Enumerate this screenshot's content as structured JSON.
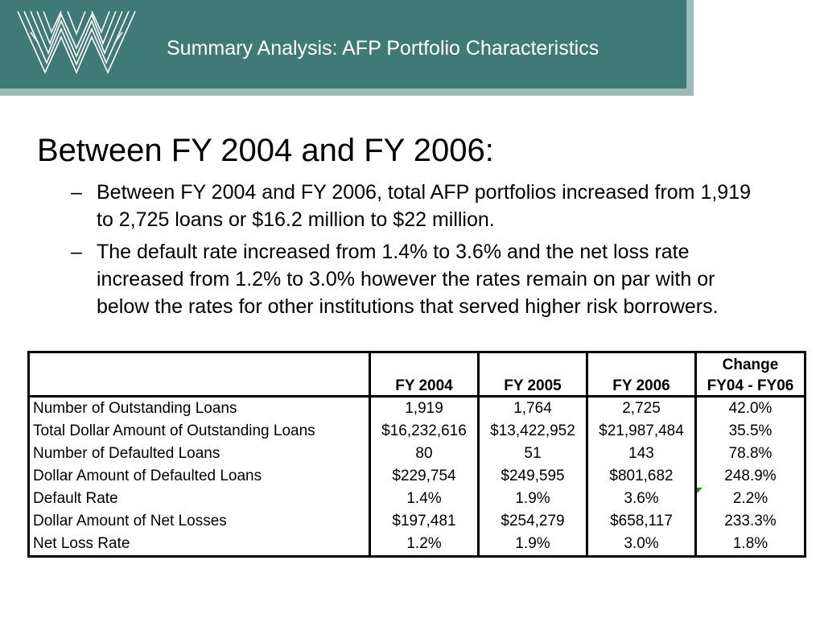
{
  "header": {
    "title": "Summary Analysis: AFP Portfolio Characteristics",
    "logo_icon": "woven-w-logo-icon",
    "colors": {
      "banner": "#3f7a78",
      "banner_shadow": "#9dbab8"
    }
  },
  "main": {
    "heading": "Between FY 2004 and FY 2006:",
    "bullets": [
      {
        "dash": "–",
        "text": "Between FY 2004 and FY 2006, total AFP portfolios increased from 1,919 to 2,725 loans or $16.2 million to $22 million."
      },
      {
        "dash": "–",
        "text": "The default rate increased from 1.4% to 3.6% and the net loss rate increased from 1.2% to 3.0% however the rates remain on par with or below the rates for other institutions that served higher risk borrowers."
      }
    ]
  },
  "table": {
    "change_top": "Change",
    "columns": [
      "FY 2004",
      "FY 2005",
      "FY 2006",
      "FY04 - FY06"
    ],
    "rows": [
      {
        "label": "Number of Outstanding Loans",
        "values": [
          "1,919",
          "1,764",
          "2,725",
          "42.0%"
        ]
      },
      {
        "label": "Total Dollar Amount of Outstanding Loans",
        "values": [
          "$16,232,616",
          "$13,422,952",
          "$21,987,484",
          "35.5%"
        ]
      },
      {
        "label": "Number of Defaulted Loans",
        "values": [
          "80",
          "51",
          "143",
          "78.8%"
        ]
      },
      {
        "label": "Dollar Amount of Defaulted Loans",
        "values": [
          "$229,754",
          "$249,595",
          "$801,682",
          "248.9%"
        ]
      },
      {
        "label": "Default Rate",
        "values": [
          "1.4%",
          "1.9%",
          "3.6%",
          "2.2%"
        ]
      },
      {
        "label": "Dollar Amount of Net Losses",
        "values": [
          "$197,481",
          "$254,279",
          "$658,117",
          "233.3%"
        ]
      },
      {
        "label": "Net Loss Rate",
        "values": [
          "1.2%",
          "1.9%",
          "3.0%",
          "1.8%"
        ]
      }
    ]
  }
}
